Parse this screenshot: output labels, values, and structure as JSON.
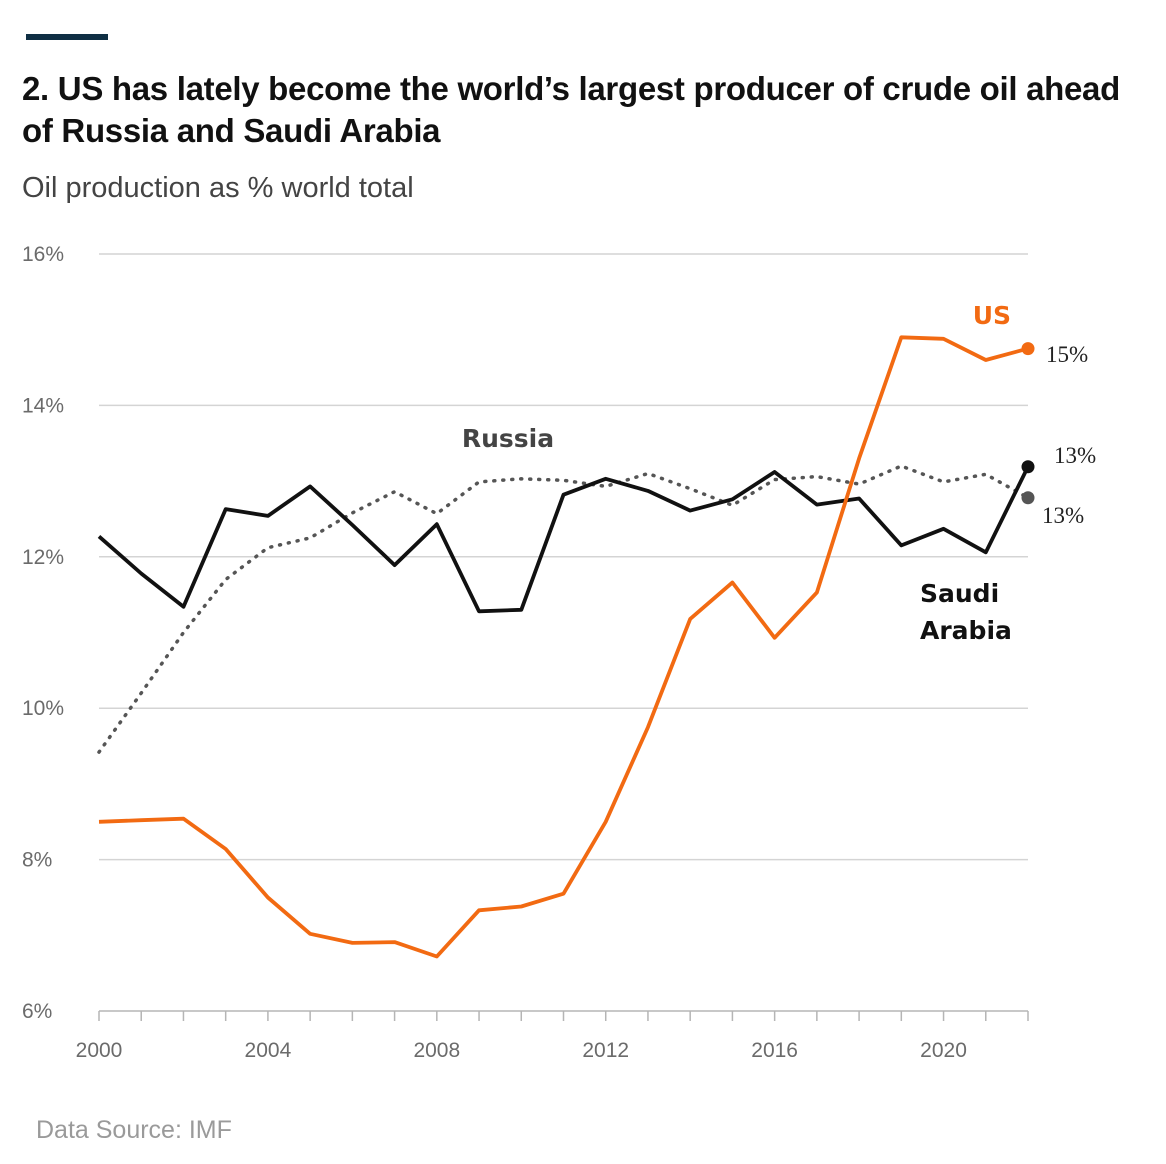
{
  "header": {
    "title": "2. US has lately become the world’s largest producer of crude oil ahead of Russia and Saudi Arabia",
    "subtitle": "Oil production as % world total"
  },
  "footer": {
    "source": "Data Source: IMF"
  },
  "colors": {
    "us": "#f26a12",
    "russia": "#555555",
    "saudi_arabia": "#111111",
    "grid": "#d4d4d4",
    "accent_rule": "#0f2f44"
  },
  "chart_data": {
    "type": "line",
    "title": "2. US has lately become the world’s largest producer of crude oil ahead of Russia and Saudi Arabia",
    "subtitle": "Oil production as % world total",
    "xlabel": "",
    "ylabel": "",
    "x": [
      2000,
      2001,
      2002,
      2003,
      2004,
      2005,
      2006,
      2007,
      2008,
      2009,
      2010,
      2011,
      2012,
      2013,
      2014,
      2015,
      2016,
      2017,
      2018,
      2019,
      2020,
      2021,
      2022
    ],
    "xlim": [
      2000,
      2022
    ],
    "ylim": [
      6,
      16
    ],
    "y_ticks": [
      6,
      8,
      10,
      12,
      14,
      16
    ],
    "y_tick_labels": [
      "6%",
      "8%",
      "10%",
      "12%",
      "14%",
      "16%"
    ],
    "x_ticks": [
      2000,
      2004,
      2008,
      2012,
      2016,
      2020
    ],
    "x_tick_labels": [
      "2000",
      "2004",
      "2008",
      "2012",
      "2016",
      "2020"
    ],
    "grid": true,
    "legend": "direct labels",
    "series": [
      {
        "key": "us",
        "name": "US",
        "style": "solid",
        "values": [
          8.5,
          8.52,
          8.54,
          8.14,
          7.5,
          7.02,
          6.9,
          6.91,
          6.72,
          7.33,
          7.38,
          7.55,
          8.5,
          9.75,
          11.18,
          11.66,
          10.93,
          11.53,
          13.3,
          14.9,
          14.88,
          14.6,
          14.75
        ],
        "end_label": "15%"
      },
      {
        "key": "russia",
        "name": "Russia",
        "style": "dotted",
        "values": [
          9.42,
          10.2,
          11.0,
          11.7,
          12.12,
          12.25,
          12.58,
          12.86,
          12.57,
          12.99,
          13.03,
          13.01,
          12.93,
          13.1,
          12.9,
          12.68,
          13.02,
          13.06,
          12.96,
          13.2,
          12.99,
          13.09,
          12.78
        ],
        "end_label": "13%"
      },
      {
        "key": "saudi_arabia",
        "name": "Saudi Arabia",
        "name_lines": [
          "Saudi",
          "Arabia"
        ],
        "style": "solid",
        "values": [
          12.27,
          11.78,
          11.34,
          12.63,
          12.54,
          12.93,
          12.42,
          11.89,
          12.43,
          11.28,
          11.3,
          12.82,
          13.03,
          12.87,
          12.61,
          12.76,
          13.12,
          12.69,
          12.77,
          12.15,
          12.37,
          12.06,
          13.19
        ],
        "end_label": "13%"
      }
    ]
  }
}
